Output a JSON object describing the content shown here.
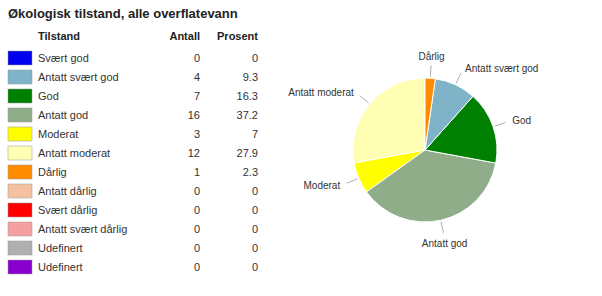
{
  "chart_data": {
    "type": "pie",
    "title": "Økologisk tilstand, alle overflatevann",
    "categories": [
      "Antatt moderat",
      "Moderat",
      "Antatt god",
      "God",
      "Antatt svært god",
      "Dårlig"
    ],
    "values": [
      27.9,
      7.0,
      37.2,
      16.3,
      9.3,
      2.3
    ],
    "colors": [
      "#ffffb3",
      "#ffff00",
      "#8fad88",
      "#008000",
      "#7fb3c8",
      "#ff8c00"
    ],
    "table": {
      "headers": [
        "Tilstand",
        "Antall",
        "Prosent"
      ],
      "labels": [
        "Svært god",
        "Antatt svært god",
        "God",
        "Antatt god",
        "Moderat",
        "Antatt moderat",
        "Dårlig",
        "Antatt dårlig",
        "Svært dårlig",
        "Antatt svært dårlig",
        "Udefinert",
        "Udefinert"
      ],
      "counts": [
        0,
        4,
        7,
        16,
        3,
        12,
        1,
        0,
        0,
        0,
        0,
        0
      ],
      "percents": [
        0,
        9.3,
        16.3,
        37.2,
        7,
        27.9,
        2.3,
        0,
        0,
        0,
        0,
        0
      ],
      "colors": [
        "#0000ee",
        "#7fb3c8",
        "#008000",
        "#8fad88",
        "#ffff00",
        "#ffffb3",
        "#ff8c00",
        "#f4c2a1",
        "#ff0000",
        "#f4a0a0",
        "#b0b0b0",
        "#8800cc"
      ]
    }
  }
}
